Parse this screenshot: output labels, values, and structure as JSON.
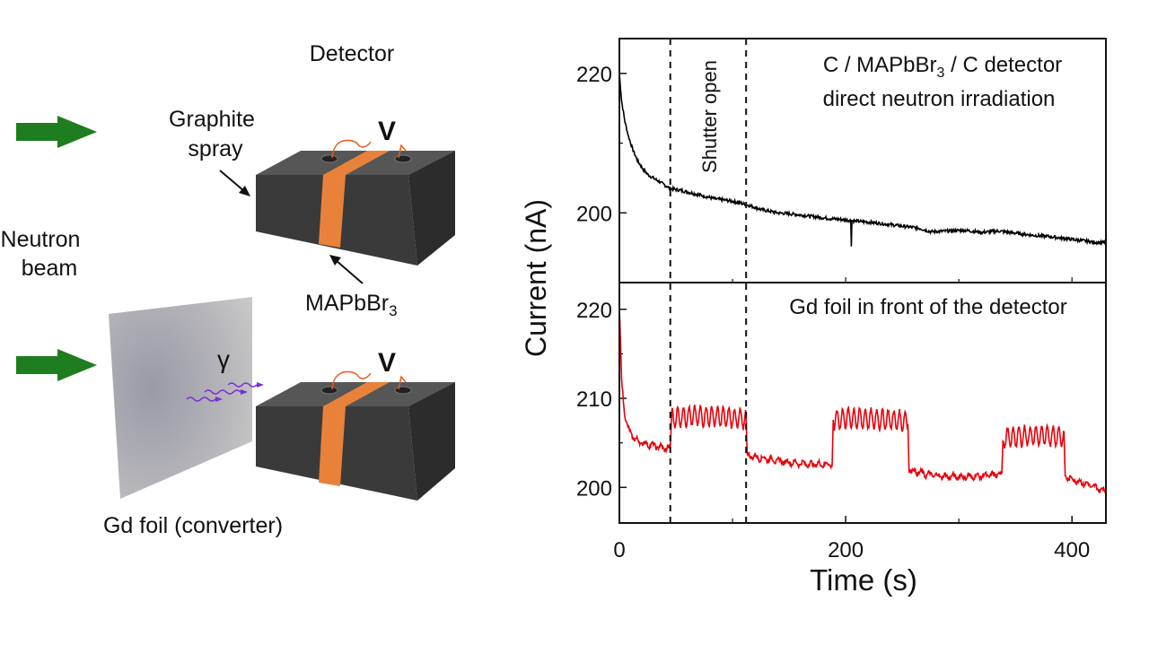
{
  "schematic": {
    "detector_label": "Detector",
    "graphite_label_line1": "Graphite",
    "graphite_label_line2": "spray",
    "neutron_label_line1": "Neutron",
    "neutron_label_line2": "beam",
    "mapbbr3_label_main": "MAPbBr",
    "mapbbr3_label_sub": "3",
    "voltage_label": "V",
    "gamma_label": "γ",
    "gd_foil_label": "Gd foil (converter)"
  },
  "colors": {
    "arrow": "#1e7d1e",
    "block": "#3a3a3a",
    "stripe": "#e8823a",
    "voltage": "#e85a1a",
    "gamma": "#7a2ed6",
    "trace_top": "#000000",
    "trace_bottom": "#e8000b"
  },
  "chart_data": {
    "type": "line",
    "xlabel": "Time (s)",
    "ylabel": "Current (nA)",
    "xlim": [
      0,
      430
    ],
    "xticks": [
      0,
      200,
      400
    ],
    "shutter_label": "Shutter open",
    "shutter_lines_x": [
      45,
      112
    ],
    "panels": [
      {
        "name": "top",
        "annotation_line1_a": "C / MAPbBr",
        "annotation_line1_sub": "3",
        "annotation_line1_b": " / C detector",
        "annotation_line2": "direct neutron irradiation",
        "ylim": [
          190,
          225
        ],
        "yticks": [
          200,
          220
        ],
        "series": [
          {
            "color": "#000000",
            "x": [
              0,
              2,
              5,
              8,
              12,
              16,
              20,
              25,
              30,
              35,
              40,
              45,
              55,
              65,
              75,
              85,
              95,
              105,
              112,
              125,
              140,
              155,
              170,
              185,
              200,
              210,
              225,
              240,
              255,
              265,
              275,
              290,
              305,
              320,
              335,
              350,
              365,
              380,
              395,
              410,
              425,
              430
            ],
            "y": [
              220,
              216,
              213,
              211,
              209,
              207.5,
              206.5,
              205.5,
              205,
              204.5,
              204,
              203.5,
              203.2,
              202.8,
              202.4,
              202,
              201.8,
              201.5,
              201.2,
              200.5,
              200,
              199.8,
              199.5,
              199.2,
              199,
              198.8,
              198.6,
              198.3,
              198,
              197.8,
              197.3,
              197.4,
              197.5,
              197.2,
              197.4,
              197.1,
              196.8,
              196.6,
              196.3,
              196,
              195.7,
              195.8
            ]
          }
        ]
      },
      {
        "name": "bottom",
        "annotation_line1_a": "Gd foil in front of the detector",
        "ylim": [
          196,
          223
        ],
        "yticks": [
          200,
          210,
          220
        ],
        "series": [
          {
            "color": "#e8000b",
            "x": [
              0,
              2,
              4,
              6,
              8,
              10,
              15,
              20,
              30,
              40,
              45,
              46,
              60,
              80,
              100,
              112,
              113,
              130,
              150,
              170,
              188,
              189,
              200,
              220,
              240,
              255,
              256,
              270,
              290,
              310,
              330,
              338,
              339,
              360,
              380,
              393,
              394,
              410,
              425,
              430
            ],
            "y": [
              220,
              212,
              209,
              207.5,
              206.5,
              206,
              205.3,
              205,
              204.7,
              204.4,
              204.3,
              207.8,
              208,
              208,
              207.8,
              207.6,
              203.6,
              203.2,
              202.8,
              202.6,
              202.6,
              207.5,
              207.8,
              207.7,
              207.6,
              207.4,
              202,
              201.5,
              201.2,
              201.2,
              201.4,
              201.5,
              205.5,
              205.8,
              205.8,
              205.7,
              201.2,
              200.5,
              199.8,
              199.6
            ]
          }
        ]
      }
    ]
  }
}
